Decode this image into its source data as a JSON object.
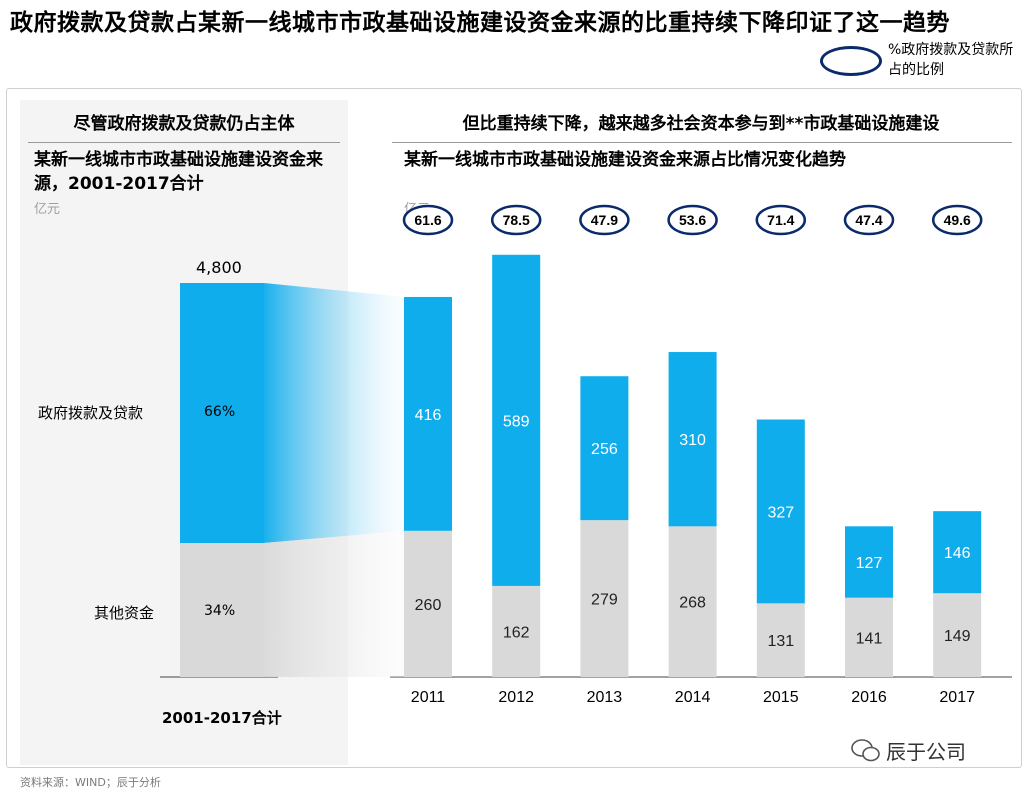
{
  "title": "政府拨款及贷款占某新一线城市市政基础设施建设资金来源的比重持续下降印证了这一趋势",
  "legend": {
    "text": "%政府拨款及贷款所占的比例"
  },
  "left_panel": {
    "heading": "尽管政府拨款及贷款仍占主体",
    "subtitle": "某新一线城市市政基础设施建设资金来源，2001-2017合计",
    "unit": "亿元",
    "total_label": "4,800",
    "x_label": "2001-2017合计",
    "segments": [
      {
        "name": "政府拨款及贷款",
        "pct": "66%"
      },
      {
        "name": "其他资金",
        "pct": "34%"
      }
    ]
  },
  "right_panel": {
    "heading": "但比重持续下降，越来越多社会资本参与到**市政基础设施建设",
    "subtitle": "某新一线城市市政基础设施建设资金来源占比情况变化趋势",
    "unit": "亿元"
  },
  "colors": {
    "blue": "#0fadec",
    "gray": "#d9d9d9",
    "navy": "#0b2a6b",
    "gradient_light": "#eef7fd"
  },
  "chart_data": [
    {
      "type": "bar",
      "stacked": true,
      "categories": [
        "2001-2017合计"
      ],
      "series": [
        {
          "name": "其他资金",
          "values": [
            34
          ]
        },
        {
          "name": "政府拨款及贷款",
          "values": [
            66
          ]
        }
      ],
      "total": 4800,
      "unit": "亿元"
    },
    {
      "type": "bar",
      "stacked": true,
      "categories": [
        "2011",
        "2012",
        "2013",
        "2014",
        "2015",
        "2016",
        "2017"
      ],
      "series": [
        {
          "name": "其他资金",
          "values": [
            260,
            162,
            279,
            268,
            131,
            141,
            149
          ]
        },
        {
          "name": "政府拨款及贷款",
          "values": [
            416,
            589,
            256,
            310,
            327,
            127,
            146
          ]
        }
      ],
      "gov_share_pct": [
        "61.6",
        "78.5",
        "47.9",
        "53.6",
        "71.4",
        "47.4",
        "49.6"
      ],
      "unit": "亿元"
    }
  ],
  "footer": "资料来源：WIND；辰于分析",
  "brand": "辰于公司"
}
